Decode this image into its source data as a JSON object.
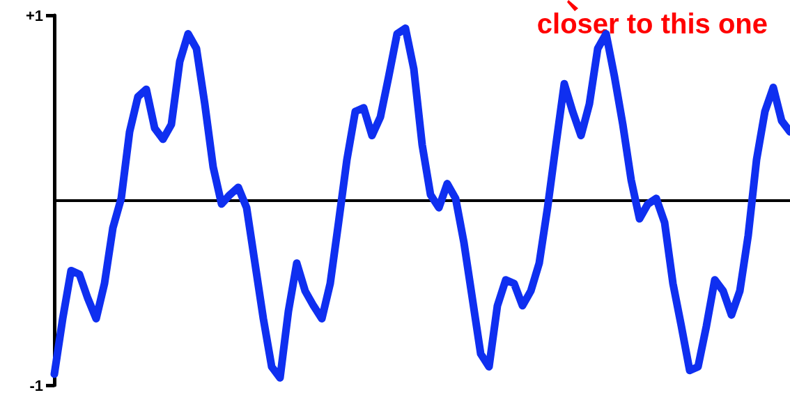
{
  "chart_data": {
    "type": "line",
    "categories": [
      null,
      null,
      null,
      null,
      null,
      null,
      null,
      null,
      null,
      null,
      null,
      null,
      null,
      null,
      null,
      null,
      null,
      null,
      null,
      null,
      null,
      null,
      null,
      null,
      null,
      null,
      null,
      null,
      null,
      null,
      null,
      null,
      null,
      null,
      null,
      null,
      null,
      null,
      null,
      null,
      null,
      null,
      null,
      null,
      null,
      null,
      null,
      null,
      null,
      null,
      null,
      null,
      null,
      null,
      null,
      null,
      null,
      null,
      null,
      null,
      null,
      null,
      null,
      null,
      null,
      null,
      null,
      null,
      null,
      null,
      null,
      null,
      null,
      null,
      null,
      null,
      null,
      null,
      null,
      null,
      null,
      null,
      null,
      null,
      null,
      null,
      null,
      null,
      null
    ],
    "series": [
      {
        "color": "#0f2ff0",
        "values": [
          -0.94,
          -0.64,
          -0.38,
          -0.4,
          -0.53,
          -0.64,
          -0.45,
          -0.15,
          0.01,
          0.37,
          0.56,
          0.6,
          0.39,
          0.33,
          0.41,
          0.75,
          0.9,
          0.82,
          0.52,
          0.18,
          -0.02,
          0.03,
          0.07,
          -0.04,
          -0.34,
          -0.64,
          -0.9,
          -0.96,
          -0.6,
          -0.34,
          -0.49,
          -0.57,
          -0.64,
          -0.45,
          -0.12,
          0.22,
          0.48,
          0.5,
          0.35,
          0.45,
          0.67,
          0.9,
          0.93,
          0.71,
          0.3,
          0.03,
          -0.04,
          0.09,
          0.01,
          -0.23,
          -0.53,
          -0.83,
          -0.9,
          -0.57,
          -0.43,
          -0.45,
          -0.57,
          -0.49,
          -0.34,
          -0.04,
          0.3,
          0.63,
          0.48,
          0.35,
          0.52,
          0.82,
          0.9,
          0.67,
          0.41,
          0.11,
          -0.1,
          -0.02,
          0.01,
          -0.12,
          -0.45,
          -0.68,
          -0.92,
          -0.9,
          -0.68,
          -0.43,
          -0.49,
          -0.62,
          -0.49,
          -0.19,
          0.22,
          0.48,
          0.61,
          0.43,
          0.37
        ]
      }
    ],
    "ylim": [
      -1,
      1
    ],
    "yticks": [
      {
        "value": 1,
        "label": "+1"
      },
      -1
    ],
    "tick_labels": "y",
    "grid": false,
    "line_style": "solid",
    "annotations": [
      "closer to this one"
    ]
  }
}
